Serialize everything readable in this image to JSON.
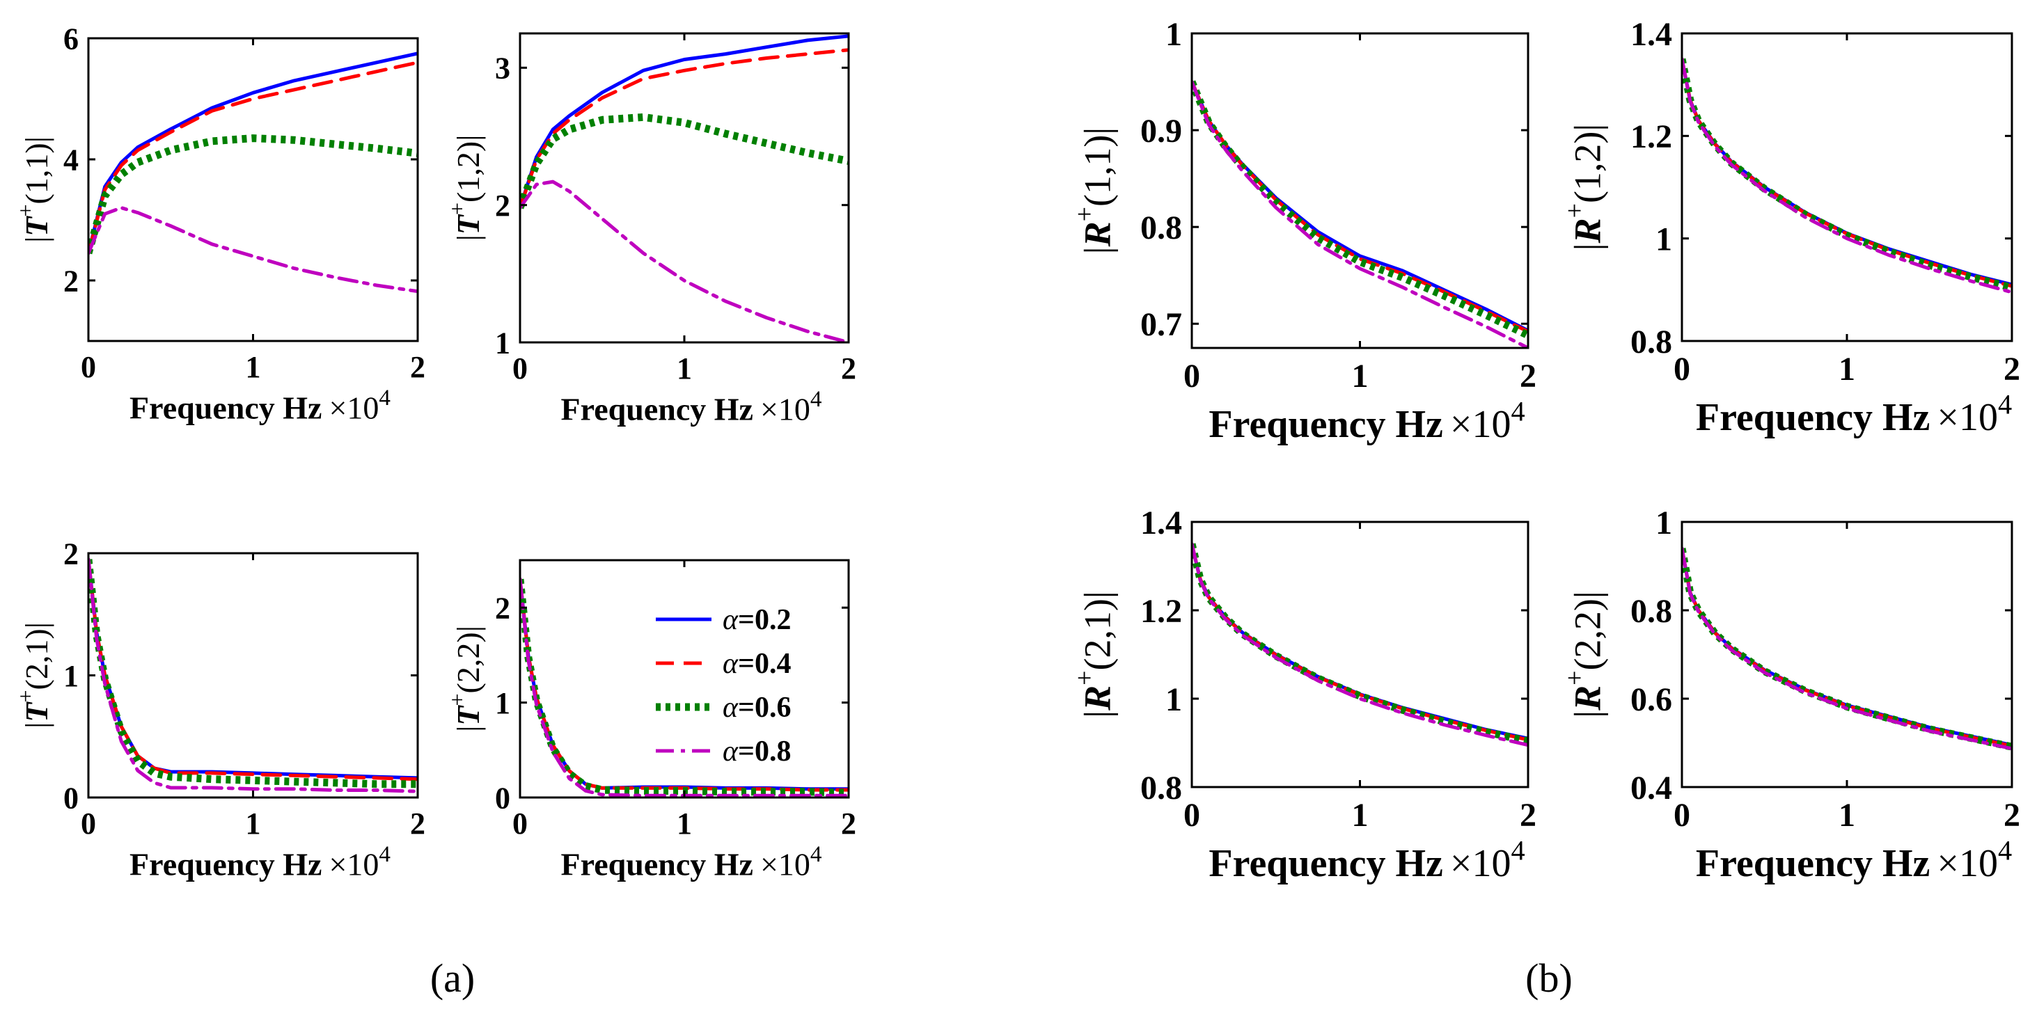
{
  "figure": {
    "caption_a": "(a)",
    "caption_b": "(b)"
  },
  "series_styles": [
    {
      "name": "α=0.2",
      "greek": "α",
      "value_text": "=0.2",
      "color": "#0000ff",
      "dash": "solid"
    },
    {
      "name": "α=0.4",
      "greek": "α",
      "value_text": "=0.4",
      "color": "#ff0000",
      "dash": "dashed"
    },
    {
      "name": "α=0.6",
      "greek": "α",
      "value_text": "=0.6",
      "color": "#008000",
      "dash": "dotted"
    },
    {
      "name": "α=0.8",
      "greek": "α",
      "value_text": "=0.8",
      "color": "#bf00bf",
      "dash": "dashdot"
    }
  ],
  "chart_data": [
    {
      "id": "T11",
      "type": "line",
      "group": "a",
      "ylabel": {
        "pre": "|",
        "letter": "T",
        "sup": "+",
        "args": "(1,1)",
        "post": "|"
      },
      "xlabel": "Frequency Hz",
      "x_multiplier": "×10",
      "x_exponent": "4",
      "xlim": [
        0,
        2
      ],
      "ylim": [
        1,
        6
      ],
      "xticks": [
        0,
        1,
        2
      ],
      "xticklabels": [
        "0",
        "1",
        "2"
      ],
      "yticks": [
        2,
        4,
        6
      ],
      "yticklabels": [
        "2",
        "4",
        "6"
      ],
      "x": [
        0,
        0.1,
        0.2,
        0.3,
        0.5,
        0.75,
        1.0,
        1.25,
        1.5,
        1.75,
        2.0
      ],
      "series": [
        {
          "name": "α=0.2",
          "values": [
            2.45,
            3.55,
            3.95,
            4.2,
            4.5,
            4.85,
            5.1,
            5.3,
            5.45,
            5.6,
            5.75
          ]
        },
        {
          "name": "α=0.4",
          "values": [
            2.45,
            3.5,
            3.9,
            4.15,
            4.45,
            4.8,
            5.0,
            5.15,
            5.3,
            5.45,
            5.6
          ]
        },
        {
          "name": "α=0.6",
          "values": [
            2.45,
            3.4,
            3.75,
            3.95,
            4.15,
            4.3,
            4.35,
            4.32,
            4.25,
            4.18,
            4.1
          ]
        },
        {
          "name": "α=0.8",
          "values": [
            2.45,
            3.1,
            3.2,
            3.12,
            2.9,
            2.6,
            2.4,
            2.2,
            2.05,
            1.92,
            1.82
          ]
        }
      ]
    },
    {
      "id": "T12",
      "type": "line",
      "group": "a",
      "ylabel": {
        "pre": "|",
        "letter": "T",
        "sup": "+",
        "args": "(1,2)",
        "post": "|"
      },
      "xlabel": "Frequency Hz",
      "x_multiplier": "×10",
      "x_exponent": "4",
      "xlim": [
        0,
        2
      ],
      "ylim": [
        1,
        3.25
      ],
      "xticks": [
        0,
        1,
        2
      ],
      "xticklabels": [
        "0",
        "1",
        "2"
      ],
      "yticks": [
        1,
        2,
        3
      ],
      "yticklabels": [
        "1",
        "2",
        "3"
      ],
      "x": [
        0,
        0.1,
        0.2,
        0.3,
        0.5,
        0.75,
        1.0,
        1.25,
        1.5,
        1.75,
        2.0
      ],
      "series": [
        {
          "name": "α=0.2",
          "values": [
            1.98,
            2.35,
            2.55,
            2.65,
            2.82,
            2.98,
            3.06,
            3.1,
            3.15,
            3.2,
            3.23
          ]
        },
        {
          "name": "α=0.4",
          "values": [
            1.98,
            2.33,
            2.52,
            2.62,
            2.78,
            2.92,
            2.98,
            3.03,
            3.07,
            3.1,
            3.13
          ]
        },
        {
          "name": "α=0.6",
          "values": [
            1.98,
            2.3,
            2.48,
            2.55,
            2.62,
            2.64,
            2.6,
            2.52,
            2.45,
            2.38,
            2.32
          ]
        },
        {
          "name": "α=0.8",
          "values": [
            1.98,
            2.15,
            2.17,
            2.1,
            1.9,
            1.65,
            1.45,
            1.3,
            1.18,
            1.08,
            1.0
          ]
        }
      ]
    },
    {
      "id": "T21",
      "type": "line",
      "group": "a",
      "ylabel": {
        "pre": "|",
        "letter": "T",
        "sup": "+",
        "args": "(2,1)",
        "post": "|"
      },
      "xlabel": "Frequency Hz",
      "x_multiplier": "×10",
      "x_exponent": "4",
      "xlim": [
        0,
        2
      ],
      "ylim": [
        0,
        2
      ],
      "xticks": [
        0,
        1,
        2
      ],
      "xticklabels": [
        "0",
        "1",
        "2"
      ],
      "yticks": [
        0,
        1,
        2
      ],
      "yticklabels": [
        "0",
        "1",
        "2"
      ],
      "x": [
        0,
        0.05,
        0.1,
        0.2,
        0.3,
        0.4,
        0.5,
        0.75,
        1.0,
        1.25,
        1.5,
        1.75,
        2.0
      ],
      "series": [
        {
          "name": "α=0.2",
          "values": [
            1.95,
            1.35,
            1.0,
            0.58,
            0.34,
            0.24,
            0.21,
            0.21,
            0.2,
            0.19,
            0.18,
            0.17,
            0.16
          ]
        },
        {
          "name": "α=0.4",
          "values": [
            1.95,
            1.35,
            1.0,
            0.58,
            0.34,
            0.24,
            0.2,
            0.2,
            0.19,
            0.18,
            0.17,
            0.16,
            0.15
          ]
        },
        {
          "name": "α=0.6",
          "values": [
            1.95,
            1.33,
            0.97,
            0.54,
            0.3,
            0.2,
            0.17,
            0.15,
            0.14,
            0.13,
            0.12,
            0.11,
            0.11
          ]
        },
        {
          "name": "α=0.8",
          "values": [
            1.95,
            1.3,
            0.93,
            0.46,
            0.22,
            0.12,
            0.08,
            0.08,
            0.07,
            0.07,
            0.06,
            0.06,
            0.05
          ]
        }
      ]
    },
    {
      "id": "T22",
      "type": "line",
      "group": "a",
      "ylabel": {
        "pre": "|",
        "letter": "T",
        "sup": "+",
        "args": "(2,2)",
        "post": "|"
      },
      "xlabel": "Frequency Hz",
      "x_multiplier": "×10",
      "x_exponent": "4",
      "xlim": [
        0,
        2
      ],
      "ylim": [
        0,
        2.5
      ],
      "xticks": [
        0,
        1,
        2
      ],
      "xticklabels": [
        "0",
        "1",
        "2"
      ],
      "yticks": [
        0,
        1,
        2
      ],
      "yticklabels": [
        "0",
        "1",
        "2"
      ],
      "x": [
        0,
        0.05,
        0.1,
        0.2,
        0.3,
        0.4,
        0.5,
        0.75,
        1.0,
        1.25,
        1.5,
        1.75,
        2.0
      ],
      "series": [
        {
          "name": "α=0.2",
          "values": [
            2.3,
            1.5,
            1.05,
            0.55,
            0.28,
            0.14,
            0.1,
            0.11,
            0.11,
            0.1,
            0.1,
            0.09,
            0.09
          ]
        },
        {
          "name": "α=0.4",
          "values": [
            2.3,
            1.5,
            1.05,
            0.55,
            0.28,
            0.14,
            0.1,
            0.1,
            0.1,
            0.09,
            0.09,
            0.08,
            0.08
          ]
        },
        {
          "name": "α=0.6",
          "values": [
            2.3,
            1.48,
            1.02,
            0.52,
            0.25,
            0.12,
            0.08,
            0.07,
            0.07,
            0.06,
            0.06,
            0.06,
            0.05
          ]
        },
        {
          "name": "α=0.8",
          "values": [
            2.3,
            1.45,
            0.98,
            0.48,
            0.2,
            0.07,
            0.03,
            0.02,
            0.02,
            0.02,
            0.02,
            0.02,
            0.02
          ]
        }
      ],
      "legend": {
        "position": "top-right",
        "entries": [
          "α=0.2",
          "α=0.4",
          "α=0.6",
          "α=0.8"
        ]
      }
    },
    {
      "id": "R11",
      "type": "line",
      "group": "b",
      "ylabel": {
        "pre": "|",
        "letter": "R",
        "sup": "+",
        "args": "(1,1)",
        "post": "|"
      },
      "xlabel": "Frequency Hz",
      "x_multiplier": "×10",
      "x_exponent": "4",
      "xlim": [
        0,
        2
      ],
      "ylim": [
        0.675,
        1
      ],
      "xticks": [
        0,
        1,
        2
      ],
      "xticklabels": [
        "0",
        "1",
        "2"
      ],
      "yticks": [
        0.7,
        0.8,
        0.9,
        1.0
      ],
      "yticklabels": [
        "0.7",
        "0.8",
        "0.9",
        "1"
      ],
      "x": [
        0,
        0.1,
        0.2,
        0.3,
        0.5,
        0.75,
        1.0,
        1.25,
        1.5,
        1.75,
        2.0
      ],
      "series": [
        {
          "name": "α=0.2",
          "values": [
            0.95,
            0.91,
            0.885,
            0.865,
            0.83,
            0.795,
            0.77,
            0.755,
            0.735,
            0.715,
            0.693
          ]
        },
        {
          "name": "α=0.4",
          "values": [
            0.95,
            0.91,
            0.885,
            0.864,
            0.828,
            0.792,
            0.767,
            0.752,
            0.733,
            0.713,
            0.692
          ]
        },
        {
          "name": "α=0.6",
          "values": [
            0.95,
            0.908,
            0.883,
            0.862,
            0.826,
            0.789,
            0.764,
            0.748,
            0.729,
            0.709,
            0.688
          ]
        },
        {
          "name": "α=0.8",
          "values": [
            0.95,
            0.906,
            0.88,
            0.858,
            0.82,
            0.782,
            0.757,
            0.738,
            0.717,
            0.697,
            0.675
          ]
        }
      ]
    },
    {
      "id": "R12",
      "type": "line",
      "group": "b",
      "ylabel": {
        "pre": "|",
        "letter": "R",
        "sup": "+",
        "args": "(1,2)",
        "post": "|"
      },
      "xlabel": "Frequency Hz",
      "x_multiplier": "×10",
      "x_exponent": "4",
      "xlim": [
        0,
        2
      ],
      "ylim": [
        0.8,
        1.4
      ],
      "xticks": [
        0,
        1,
        2
      ],
      "xticklabels": [
        "0",
        "1",
        "2"
      ],
      "yticks": [
        0.8,
        1.0,
        1.2,
        1.4
      ],
      "yticklabels": [
        "0.8",
        "1",
        "1.2",
        "1.4"
      ],
      "x": [
        0,
        0.05,
        0.1,
        0.2,
        0.3,
        0.5,
        0.75,
        1.0,
        1.25,
        1.5,
        1.75,
        2.0
      ],
      "series": [
        {
          "name": "α=0.2",
          "values": [
            1.35,
            1.27,
            1.23,
            1.185,
            1.15,
            1.1,
            1.05,
            1.01,
            0.98,
            0.955,
            0.93,
            0.91
          ]
        },
        {
          "name": "α=0.4",
          "values": [
            1.35,
            1.27,
            1.23,
            1.184,
            1.149,
            1.099,
            1.049,
            1.009,
            0.978,
            0.952,
            0.928,
            0.907
          ]
        },
        {
          "name": "α=0.6",
          "values": [
            1.35,
            1.27,
            1.229,
            1.183,
            1.147,
            1.097,
            1.046,
            1.006,
            0.975,
            0.948,
            0.925,
            0.904
          ]
        },
        {
          "name": "α=0.8",
          "values": [
            1.35,
            1.268,
            1.227,
            1.18,
            1.144,
            1.093,
            1.041,
            1.0,
            0.968,
            0.941,
            0.917,
            0.895
          ]
        }
      ]
    },
    {
      "id": "R21",
      "type": "line",
      "group": "b",
      "ylabel": {
        "pre": "|",
        "letter": "R",
        "sup": "+",
        "args": "(2,1)",
        "post": "|"
      },
      "xlabel": "Frequency Hz",
      "x_multiplier": "×10",
      "x_exponent": "4",
      "xlim": [
        0,
        2
      ],
      "ylim": [
        0.8,
        1.4
      ],
      "xticks": [
        0,
        1,
        2
      ],
      "xticklabels": [
        "0",
        "1",
        "2"
      ],
      "yticks": [
        0.8,
        1.0,
        1.2,
        1.4
      ],
      "yticklabels": [
        "0.8",
        "1",
        "1.2",
        "1.4"
      ],
      "x": [
        0,
        0.05,
        0.1,
        0.2,
        0.3,
        0.5,
        0.75,
        1.0,
        1.25,
        1.5,
        1.75,
        2.0
      ],
      "series": [
        {
          "name": "α=0.2",
          "values": [
            1.35,
            1.27,
            1.23,
            1.185,
            1.15,
            1.1,
            1.05,
            1.01,
            0.98,
            0.955,
            0.93,
            0.91
          ]
        },
        {
          "name": "α=0.4",
          "values": [
            1.35,
            1.27,
            1.23,
            1.184,
            1.149,
            1.099,
            1.049,
            1.009,
            0.978,
            0.952,
            0.928,
            0.907
          ]
        },
        {
          "name": "α=0.6",
          "values": [
            1.35,
            1.27,
            1.229,
            1.183,
            1.147,
            1.097,
            1.046,
            1.006,
            0.975,
            0.948,
            0.925,
            0.904
          ]
        },
        {
          "name": "α=0.8",
          "values": [
            1.35,
            1.268,
            1.227,
            1.18,
            1.144,
            1.093,
            1.041,
            1.0,
            0.968,
            0.941,
            0.917,
            0.895
          ]
        }
      ]
    },
    {
      "id": "R22",
      "type": "line",
      "group": "b",
      "ylabel": {
        "pre": "|",
        "letter": "R",
        "sup": "+",
        "args": "(2,2)",
        "post": "|"
      },
      "xlabel": "Frequency Hz",
      "x_multiplier": "×10",
      "x_exponent": "4",
      "xlim": [
        0,
        2
      ],
      "ylim": [
        0.4,
        1
      ],
      "xticks": [
        0,
        1,
        2
      ],
      "xticklabels": [
        "0",
        "1",
        "2"
      ],
      "yticks": [
        0.4,
        0.6,
        0.8,
        1.0
      ],
      "yticklabels": [
        "0.4",
        "0.6",
        "0.8",
        "1"
      ],
      "x": [
        0,
        0.05,
        0.1,
        0.2,
        0.3,
        0.5,
        0.75,
        1.0,
        1.25,
        1.5,
        1.75,
        2.0
      ],
      "series": [
        {
          "name": "α=0.2",
          "values": [
            0.94,
            0.84,
            0.8,
            0.75,
            0.715,
            0.665,
            0.62,
            0.585,
            0.56,
            0.535,
            0.515,
            0.495
          ]
        },
        {
          "name": "α=0.4",
          "values": [
            0.94,
            0.84,
            0.8,
            0.749,
            0.714,
            0.664,
            0.619,
            0.584,
            0.558,
            0.533,
            0.513,
            0.493
          ]
        },
        {
          "name": "α=0.6",
          "values": [
            0.94,
            0.839,
            0.799,
            0.748,
            0.713,
            0.662,
            0.617,
            0.582,
            0.556,
            0.531,
            0.511,
            0.491
          ]
        },
        {
          "name": "α=0.8",
          "values": [
            0.94,
            0.838,
            0.797,
            0.746,
            0.71,
            0.659,
            0.613,
            0.578,
            0.552,
            0.527,
            0.507,
            0.487
          ]
        }
      ]
    }
  ]
}
